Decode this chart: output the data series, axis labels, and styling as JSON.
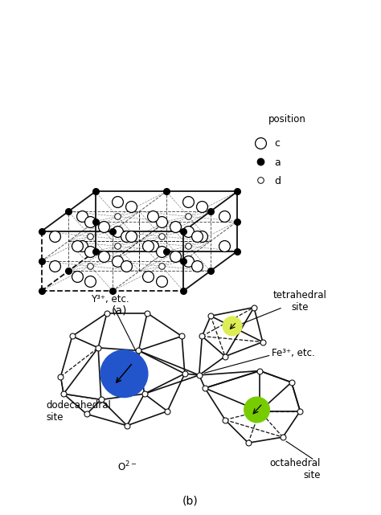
{
  "title_a": "(a)",
  "title_b": "(b)",
  "bg_color": "#ffffff",
  "legend_position_label": "position",
  "legend_c_label": "c",
  "legend_a_label": "a",
  "legend_d_label": "d",
  "label_y3": "Y³⁺, etc.",
  "label_fe3": "Fe³⁺, etc.",
  "label_dodeca": "dodecahedral\nsite",
  "label_octa": "octahedral\nsite",
  "label_tetra": "tetrahedral\nsite",
  "label_o2": "O²⁻",
  "blue_color": "#2255cc",
  "yellow_color": "#ddee55",
  "green_color": "#77cc00",
  "line_color": "#111111",
  "node_color": "#ffffff",
  "node_edge": "#111111",
  "proj_sx": 1.0,
  "proj_sy": 0.42,
  "proj_sz": 0.7,
  "proj_zx": 0.38,
  "proj_zy": 0.28
}
